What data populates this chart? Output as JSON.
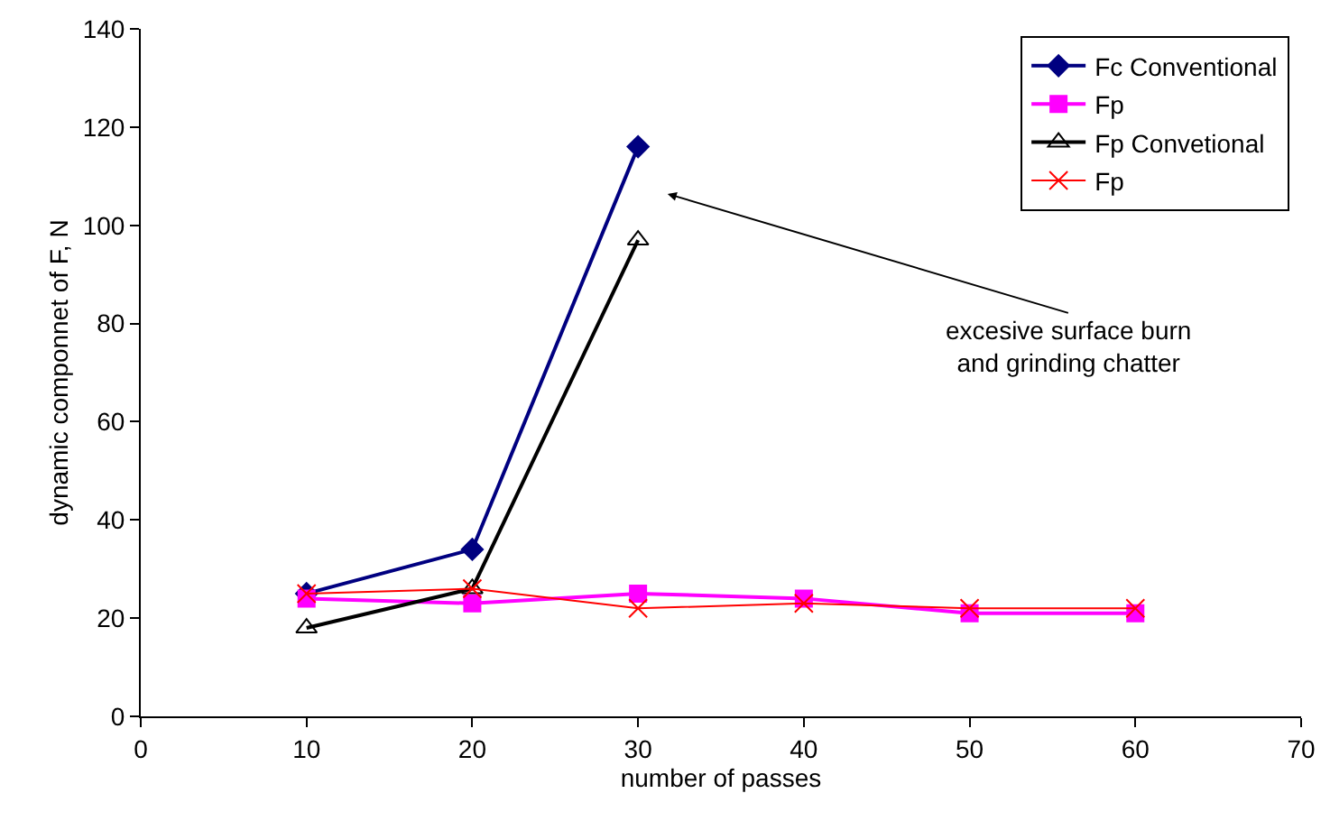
{
  "chart_data": {
    "type": "line",
    "xlabel": "number of passes",
    "ylabel": "dynamic componnet of F, N",
    "xlim": [
      0,
      70
    ],
    "xticks": [
      0,
      10,
      20,
      30,
      40,
      50,
      60,
      70
    ],
    "ylim": [
      0,
      140
    ],
    "yticks": [
      0,
      20,
      40,
      60,
      80,
      100,
      120,
      140
    ],
    "legend": "top right",
    "series": [
      {
        "name": "Fc Conventional",
        "color": "#000080",
        "marker": "diamond",
        "x": [
          10,
          20,
          30
        ],
        "values": [
          25,
          34,
          116
        ]
      },
      {
        "name": "Fp",
        "color": "#ff00ff",
        "marker": "square",
        "x": [
          10,
          20,
          30,
          40,
          50,
          60
        ],
        "values": [
          24,
          23,
          25,
          24,
          21,
          21
        ]
      },
      {
        "name": "Fp Convetional",
        "color": "#000000",
        "marker": "triangle",
        "x": [
          10,
          20,
          30
        ],
        "values": [
          18,
          26,
          97
        ]
      },
      {
        "name": "Fp",
        "color": "#ff0000",
        "marker": "cross",
        "x": [
          10,
          20,
          30,
          40,
          50,
          60
        ],
        "values": [
          25,
          26,
          22,
          23,
          22,
          22
        ]
      }
    ],
    "annotations": [
      "excesive surface burn\nand grinding chatter"
    ]
  }
}
